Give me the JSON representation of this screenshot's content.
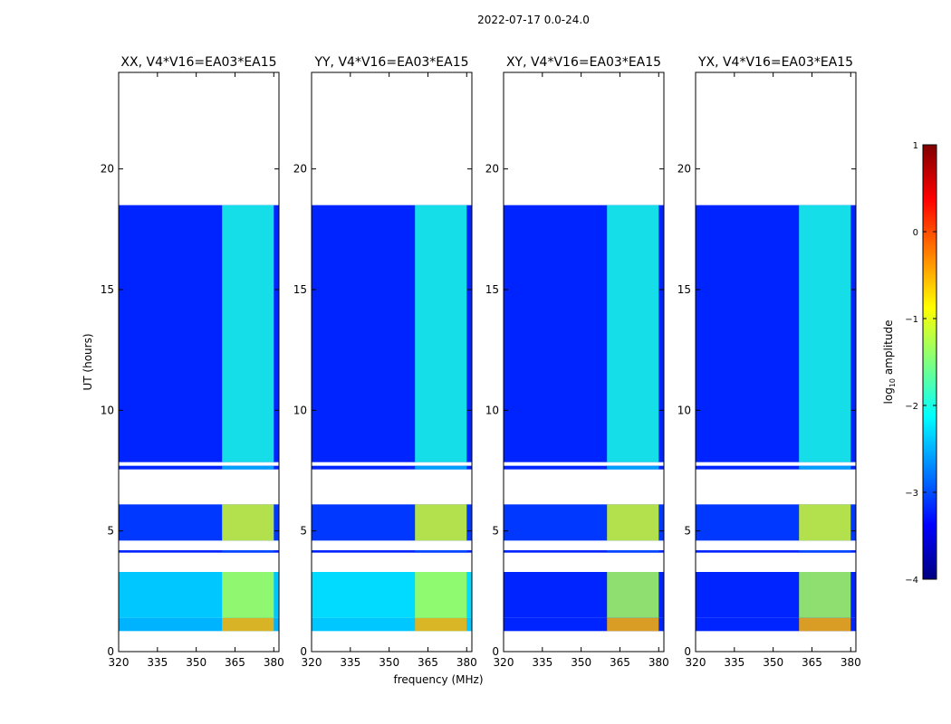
{
  "chart_data": {
    "type": "heatmap",
    "suptitle": "2022-07-17 0.0-24.0",
    "xlabel": "frequency (MHz)",
    "ylabel": "UT (hours)",
    "xlim": [
      320,
      382
    ],
    "ylim": [
      0,
      24
    ],
    "xticks": [
      320,
      335,
      350,
      365,
      380
    ],
    "yticks": [
      0,
      5,
      10,
      15,
      20
    ],
    "colorbar": {
      "label": "log10 amplitude",
      "label_main": "log",
      "label_sub": "10",
      "label_rest": " amplitude",
      "range": [
        -4,
        1
      ],
      "ticks": [
        -4,
        -3,
        -2,
        -1,
        0,
        1
      ],
      "colormap": "jet"
    },
    "rfi_band_mhz": [
      360,
      380
    ],
    "background_log_amp": -3.1,
    "data_segments_ut": [
      {
        "start": 0.85,
        "end": 1.4,
        "bg": -2.5,
        "rfi": -0.5
      },
      {
        "start": 1.4,
        "end": 3.3,
        "bg": -2.4,
        "rfi": -1.3
      },
      {
        "start": 4.1,
        "end": 4.2,
        "bg": -3.2,
        "rfi": -3.0
      },
      {
        "start": 4.6,
        "end": 6.1,
        "bg": -3.1,
        "rfi": -1.1
      },
      {
        "start": 7.55,
        "end": 7.7,
        "bg": -3.2,
        "rfi": -2.5
      },
      {
        "start": 7.85,
        "end": 18.5,
        "bg": -3.2,
        "rfi": -2.0
      }
    ],
    "panels": [
      {
        "title": "XX, V4*V16=EA03*EA15",
        "low_seg_bg": -2.5
      },
      {
        "title": "YY, V4*V16=EA03*EA15",
        "low_seg_bg": -2.4
      },
      {
        "title": "XY, V4*V16=EA03*EA15",
        "low_seg_bg": -3.2
      },
      {
        "title": "YX, V4*V16=EA03*EA15",
        "low_seg_bg": -3.2
      }
    ]
  }
}
